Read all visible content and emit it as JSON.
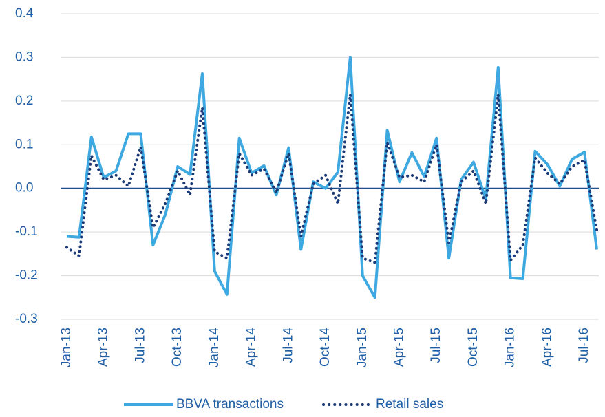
{
  "chart_data": {
    "type": "line",
    "categories": [
      "Jan-13",
      null,
      null,
      "Apr-13",
      null,
      null,
      "Jul-13",
      null,
      null,
      "Oct-13",
      null,
      null,
      "Jan-14",
      null,
      null,
      "Apr-14",
      null,
      null,
      "Jul-14",
      null,
      null,
      "Oct-14",
      null,
      null,
      "Jan-15",
      null,
      null,
      "Apr-15",
      null,
      null,
      "Jul-15",
      null,
      null,
      "Oct-15",
      null,
      null,
      "Jan-16",
      null,
      null,
      "Apr-16",
      null,
      null,
      "Jul-16",
      null
    ],
    "series": [
      {
        "name": "BBVA transactions",
        "color": "#3ea8e0",
        "style": "solid",
        "values": [
          -0.11,
          -0.112,
          0.118,
          0.025,
          0.04,
          0.125,
          0.125,
          -0.13,
          -0.06,
          0.05,
          0.032,
          0.263,
          -0.19,
          -0.243,
          0.115,
          0.035,
          0.052,
          -0.015,
          0.093,
          -0.14,
          0.015,
          0.0,
          0.037,
          0.3,
          -0.2,
          -0.25,
          0.133,
          0.015,
          0.082,
          0.027,
          0.115,
          -0.16,
          0.02,
          0.06,
          -0.025,
          0.277,
          -0.205,
          -0.207,
          0.085,
          0.055,
          0.005,
          0.067,
          0.083,
          -0.14
        ]
      },
      {
        "name": "Retail sales",
        "color": "#1b3a78",
        "style": "dotted",
        "values": [
          -0.135,
          -0.155,
          0.075,
          0.02,
          0.03,
          0.005,
          0.095,
          -0.09,
          -0.035,
          0.04,
          -0.015,
          0.185,
          -0.145,
          -0.16,
          0.08,
          0.03,
          0.045,
          -0.01,
          0.08,
          -0.11,
          0.01,
          0.03,
          -0.035,
          0.215,
          -0.16,
          -0.17,
          0.105,
          0.025,
          0.03,
          0.015,
          0.1,
          -0.125,
          0.015,
          0.04,
          -0.035,
          0.215,
          -0.165,
          -0.13,
          0.07,
          0.035,
          0.01,
          0.05,
          0.065,
          -0.095
        ]
      }
    ],
    "ylim": [
      -0.3,
      0.4
    ],
    "yticks": [
      -0.3,
      -0.2,
      -0.1,
      {
        "value": 0,
        "label": "0.0"
      },
      0.1,
      0.2,
      0.3,
      0.4
    ],
    "grid": true,
    "legend": "bottom"
  }
}
